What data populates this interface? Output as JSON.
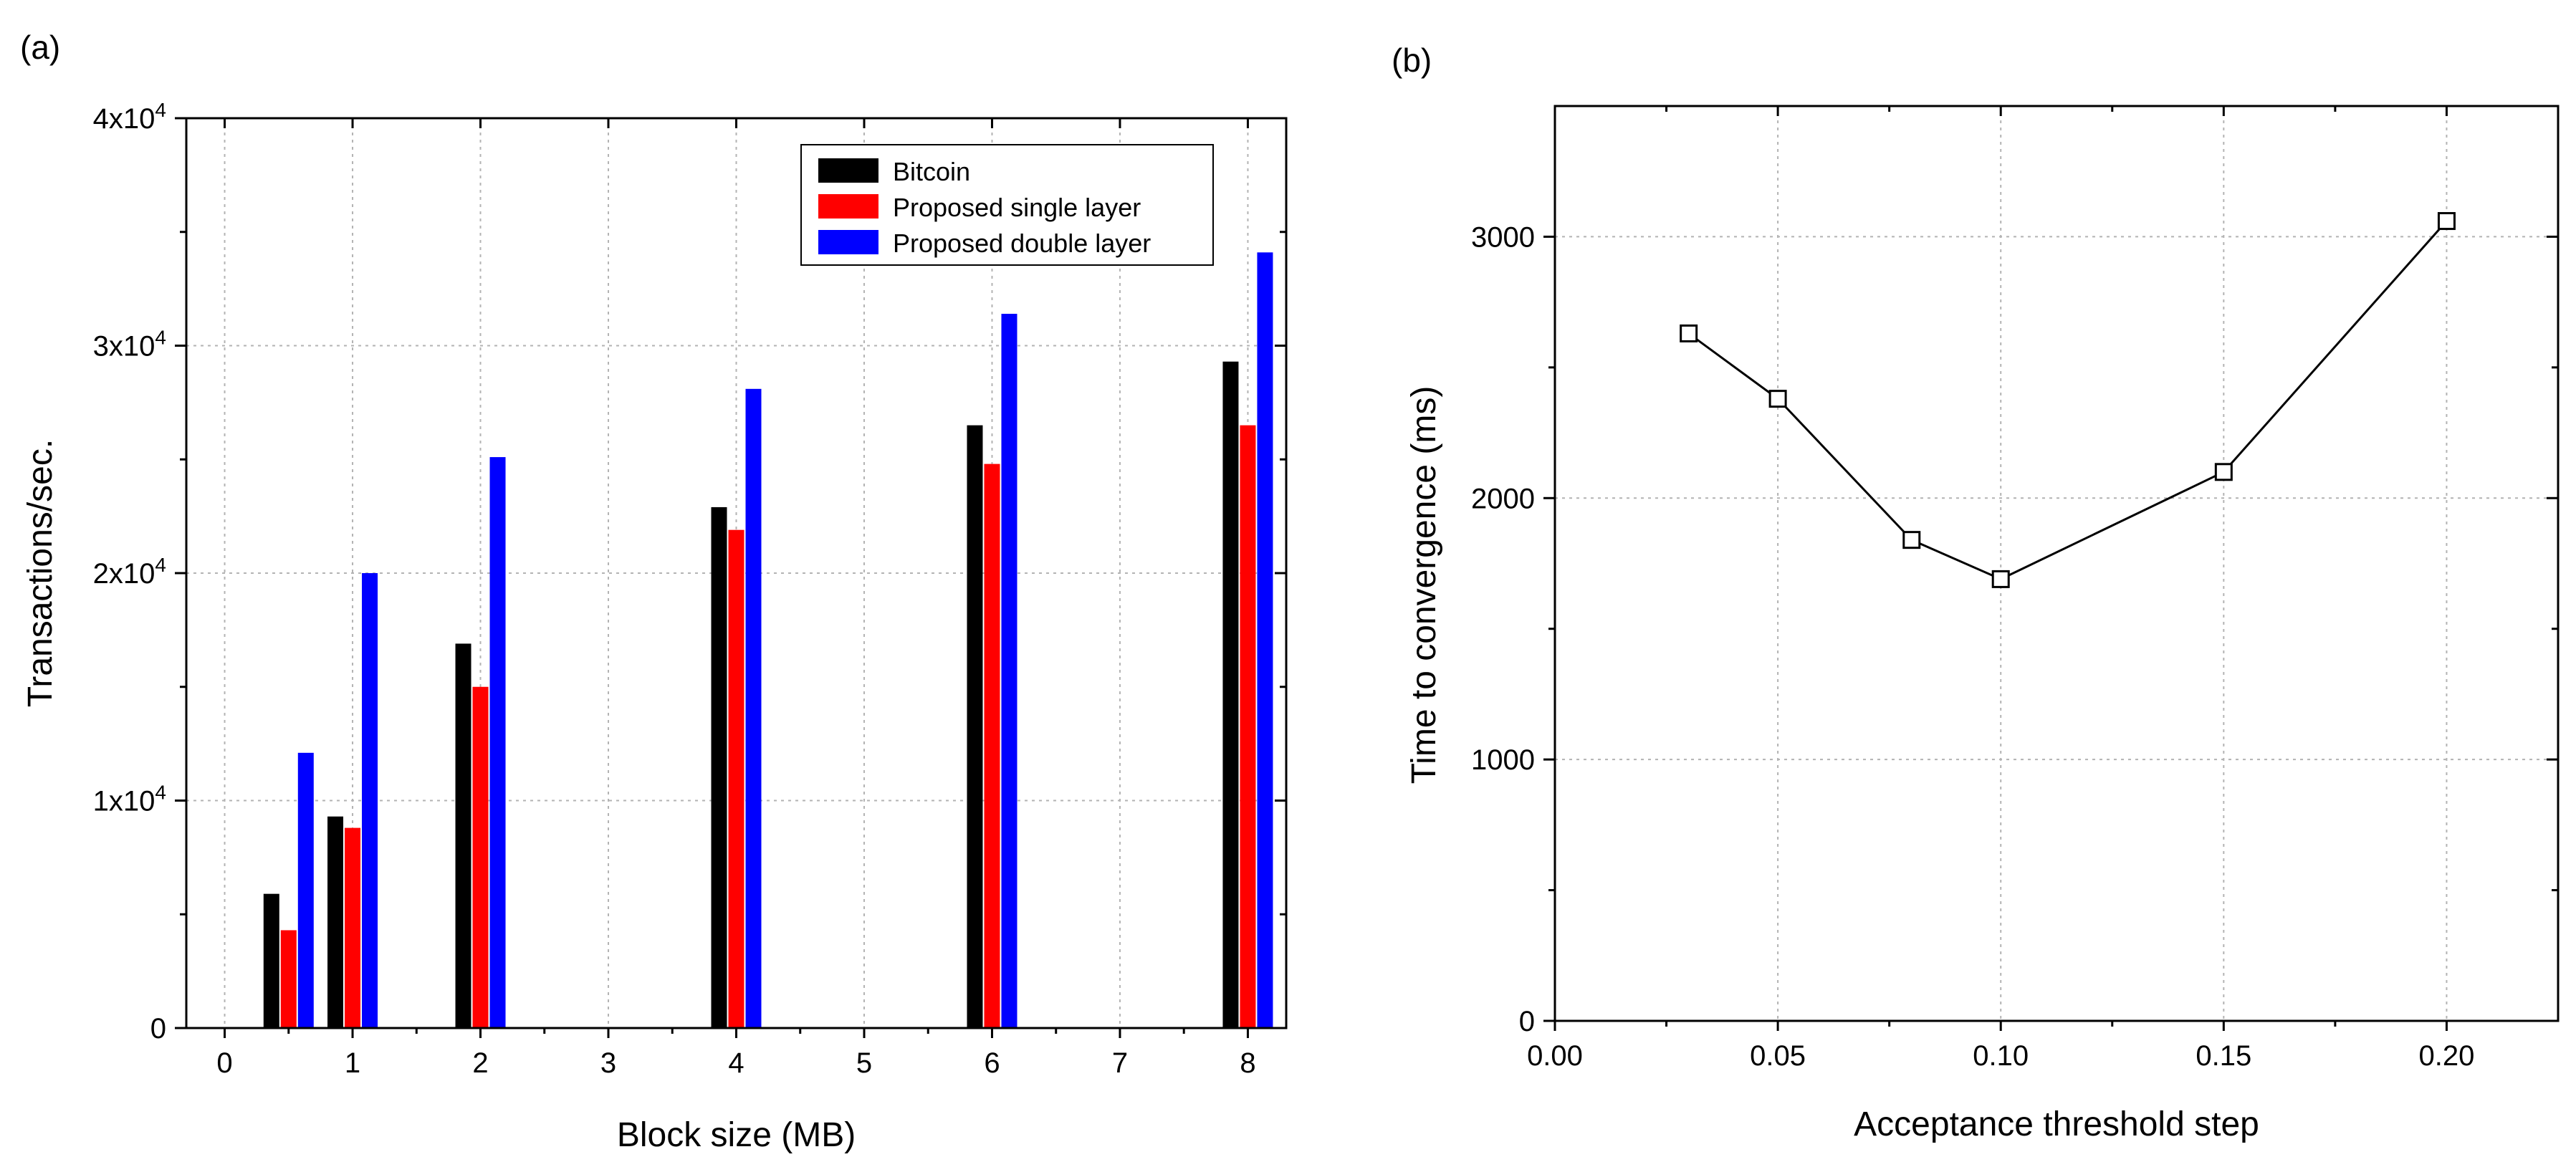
{
  "chart_data": [
    {
      "panel_label": "(a)",
      "type": "bar",
      "title": "",
      "xlabel": "Block size (MB)",
      "ylabel": "Transactions/sec.",
      "xlim": [
        -0.3,
        8.3
      ],
      "ylim": [
        0,
        40000
      ],
      "x_ticks": [
        0,
        1,
        2,
        3,
        4,
        5,
        6,
        7,
        8
      ],
      "x_tick_labels": [
        "0",
        "1",
        "2",
        "3",
        "4",
        "5",
        "6",
        "7",
        "8"
      ],
      "y_ticks": [
        0,
        10000,
        20000,
        30000,
        40000
      ],
      "y_tick_labels": [
        {
          "mantissa": "0",
          "exponent": ""
        },
        {
          "mantissa": "1x10",
          "exponent": "4"
        },
        {
          "mantissa": "2x10",
          "exponent": "4"
        },
        {
          "mantissa": "3x10",
          "exponent": "4"
        },
        {
          "mantissa": "4x10",
          "exponent": "4"
        }
      ],
      "grid": true,
      "legend_position": "top-right",
      "categories": [
        0.5,
        1,
        2,
        4,
        6,
        8
      ],
      "series": [
        {
          "name": "Bitcoin",
          "color": "#000000",
          "values": [
            5900,
            9300,
            16900,
            22900,
            26500,
            29300
          ]
        },
        {
          "name": "Proposed single layer",
          "color": "#ff0000",
          "values": [
            4300,
            8800,
            15000,
            21900,
            24800,
            26500
          ]
        },
        {
          "name": "Proposed double layer",
          "color": "#0000ff",
          "values": [
            12100,
            20000,
            25100,
            28100,
            31400,
            34100
          ]
        }
      ]
    },
    {
      "panel_label": "(b)",
      "type": "line",
      "title": "",
      "xlabel": "Acceptance threshold step",
      "ylabel": "Time to convergence (ms)",
      "xlim": [
        0,
        0.225
      ],
      "ylim": [
        0,
        3500
      ],
      "x_ticks": [
        0,
        0.05,
        0.1,
        0.15,
        0.2
      ],
      "x_tick_labels": [
        "0.00",
        "0.05",
        "0.10",
        "0.15",
        "0.20"
      ],
      "y_ticks": [
        0,
        1000,
        2000,
        3000
      ],
      "y_tick_labels": [
        "0",
        "1000",
        "2000",
        "3000"
      ],
      "grid": true,
      "series": [
        {
          "name": "Time to convergence",
          "color": "#000000",
          "marker": "open-square",
          "x": [
            0.03,
            0.05,
            0.08,
            0.1,
            0.15,
            0.2
          ],
          "y": [
            2630,
            2380,
            1840,
            1690,
            2100,
            3060
          ]
        }
      ]
    }
  ]
}
